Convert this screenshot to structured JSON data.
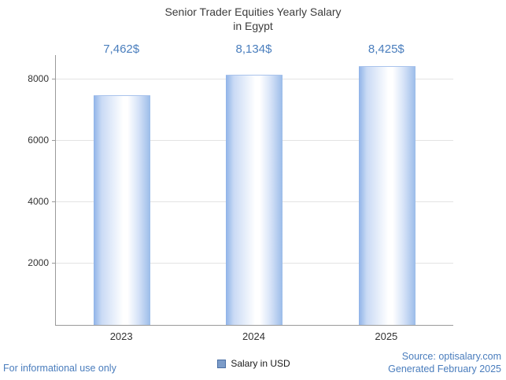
{
  "chart_data": {
    "type": "bar",
    "title": "Senior Trader Equities Yearly Salary in Egypt",
    "title_lines": [
      "Senior Trader Equities Yearly Salary",
      "in Egypt"
    ],
    "categories": [
      "2023",
      "2024",
      "2025"
    ],
    "values": [
      7462,
      8134,
      8425
    ],
    "value_labels": [
      "7,462$",
      "8,134$",
      "8,425$"
    ],
    "series": [
      {
        "name": "Salary in USD",
        "values": [
          7462,
          8134,
          8425
        ]
      }
    ],
    "yticks": [
      2000,
      4000,
      6000,
      8000
    ],
    "ytick_labels": [
      "2000",
      "4000",
      "6000",
      "8000"
    ],
    "ylim": [
      0,
      8800
    ],
    "xlabel": "",
    "ylabel": "",
    "grid": true,
    "legend_position": "bottom",
    "colors": {
      "value_label": "#4a7ebd",
      "bar_edge": "#8fb3e8",
      "bar_center": "#ffffff",
      "legend_swatch": "#7c9cc9",
      "footer_text": "#4a7dbd",
      "title_text": "#3c3c3c",
      "gridline": "#e3e3e3",
      "axis": "#9a9a9a"
    }
  },
  "legend": {
    "label": "Salary in USD"
  },
  "footer": {
    "disclaimer": "For informational use only",
    "source_line1": "Source: optisalary.com",
    "source_line2": "Generated February 2025"
  }
}
